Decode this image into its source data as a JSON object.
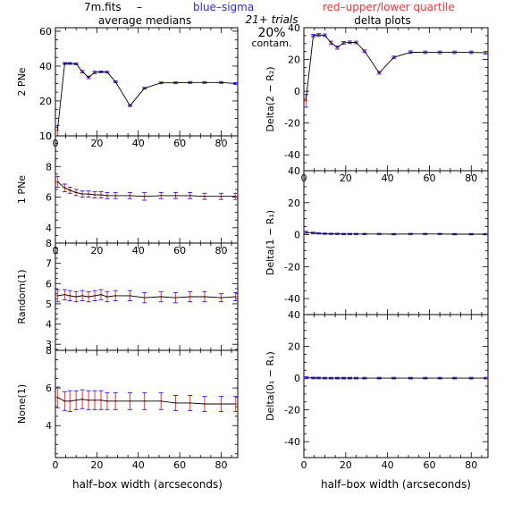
{
  "header": {
    "file": "7m.fits",
    "dash": "–",
    "blue_label": "blue–sigma",
    "red_label": "red–upper/lower quartile",
    "left_title": "average medians",
    "right_title": "delta plots",
    "trials": "21+ trials",
    "contam_pct": "20%",
    "contam_word": "contam."
  },
  "colors": {
    "line": "#000000",
    "blue": "#2a2af0",
    "red": "#ff3030",
    "axis": "#000000"
  },
  "chart_data": [
    {
      "type": "line",
      "panel": "left-1",
      "ylabel": "2 PNe",
      "xlim": [
        0,
        88
      ],
      "ylim": [
        0,
        62
      ],
      "xticks": [
        0,
        20,
        40,
        60,
        80
      ],
      "yticks": [
        0,
        20,
        40,
        60
      ],
      "show_xticklabels": true,
      "series": [
        {
          "x": [
            1,
            4.5,
            7,
            10,
            13,
            16,
            19,
            22,
            25,
            29,
            36,
            43,
            51,
            58,
            65,
            72,
            80,
            87
          ],
          "y": [
            3,
            41.5,
            41.5,
            41.3,
            36.8,
            33.5,
            36.4,
            36.7,
            36.5,
            31,
            17.3,
            27.3,
            30.4,
            30.4,
            30.6,
            30.6,
            30.6,
            30.0
          ],
          "err": [
            3,
            0.5,
            0.5,
            0.5,
            0.7,
            0.7,
            0.7,
            0.5,
            0.5,
            0.5,
            0.5,
            0.5,
            0.5,
            0.5,
            0.5,
            0.5,
            0.5,
            0.5
          ]
        }
      ]
    },
    {
      "type": "line",
      "panel": "left-2",
      "ylabel": "1 PNe",
      "xlim": [
        0,
        88
      ],
      "ylim": [
        3,
        10
      ],
      "xticks": [
        0,
        20,
        40,
        60,
        80
      ],
      "yticks": [
        4,
        6,
        8,
        10
      ],
      "show_xticklabels": true,
      "series": [
        {
          "x": [
            1,
            4.5,
            7,
            10,
            13,
            16,
            19,
            22,
            25,
            29,
            36,
            43,
            51,
            58,
            65,
            72,
            80,
            87
          ],
          "y": [
            7.0,
            6.6,
            6.45,
            6.3,
            6.2,
            6.2,
            6.15,
            6.15,
            6.1,
            6.1,
            6.1,
            6.05,
            6.1,
            6.1,
            6.1,
            6.05,
            6.05,
            6.05
          ],
          "err": [
            0.35,
            0.25,
            0.2,
            0.2,
            0.2,
            0.2,
            0.2,
            0.2,
            0.2,
            0.2,
            0.2,
            0.25,
            0.2,
            0.2,
            0.2,
            0.2,
            0.2,
            0.2
          ]
        }
      ]
    },
    {
      "type": "line",
      "panel": "left-3",
      "ylabel": "Random(1)",
      "xlim": [
        0,
        88
      ],
      "ylim": [
        2.7,
        8
      ],
      "xticks": [
        0,
        20,
        40,
        60,
        80
      ],
      "yticks": [
        3,
        4,
        5,
        6,
        7,
        8
      ],
      "show_xticklabels": false,
      "series": [
        {
          "x": [
            1,
            4.5,
            7,
            10,
            13,
            16,
            19,
            22,
            25,
            29,
            36,
            43,
            51,
            58,
            65,
            72,
            80,
            87
          ],
          "y": [
            5.4,
            5.45,
            5.4,
            5.35,
            5.4,
            5.35,
            5.4,
            5.45,
            5.35,
            5.4,
            5.4,
            5.3,
            5.35,
            5.3,
            5.35,
            5.35,
            5.3,
            5.35
          ],
          "err": [
            0.3,
            0.25,
            0.25,
            0.25,
            0.25,
            0.25,
            0.25,
            0.25,
            0.25,
            0.25,
            0.25,
            0.25,
            0.25,
            0.25,
            0.25,
            0.25,
            0.2,
            0.2
          ]
        }
      ]
    },
    {
      "type": "line",
      "panel": "left-4",
      "ylabel": "None(1)",
      "xlim": [
        0,
        88
      ],
      "ylim": [
        2.3,
        8
      ],
      "xticks": [
        0,
        20,
        40,
        60,
        80
      ],
      "yticks": [
        4,
        6,
        8
      ],
      "show_xticklabels": true,
      "series": [
        {
          "x": [
            1,
            4.5,
            7,
            10,
            13,
            16,
            19,
            22,
            25,
            29,
            36,
            43,
            51,
            58,
            65,
            72,
            80,
            87
          ],
          "y": [
            5.5,
            5.3,
            5.3,
            5.35,
            5.4,
            5.35,
            5.35,
            5.35,
            5.3,
            5.3,
            5.3,
            5.3,
            5.3,
            5.2,
            5.2,
            5.15,
            5.15,
            5.15
          ],
          "err": [
            0.55,
            0.5,
            0.55,
            0.5,
            0.5,
            0.5,
            0.5,
            0.5,
            0.45,
            0.45,
            0.45,
            0.45,
            0.45,
            0.4,
            0.4,
            0.4,
            0.4,
            0.4
          ]
        }
      ]
    },
    {
      "type": "line",
      "panel": "right-1",
      "ylabel": "Delta(2 − R₂)",
      "xlim": [
        0,
        88
      ],
      "ylim": [
        -50,
        40
      ],
      "xticks": [
        0,
        20,
        40,
        60,
        80
      ],
      "yticks": [
        -40,
        -20,
        0,
        20,
        40
      ],
      "show_xticklabels": true,
      "series": [
        {
          "x": [
            1,
            4.5,
            7,
            10,
            13,
            16,
            19,
            22,
            25,
            29,
            36,
            43,
            51,
            58,
            65,
            72,
            80,
            87
          ],
          "y": [
            -6,
            35,
            35.5,
            35.2,
            30.5,
            27.5,
            30.5,
            30.8,
            30.7,
            25.2,
            11.6,
            21.3,
            24.6,
            24.5,
            24.5,
            24.5,
            24.5,
            24.2
          ],
          "err": [
            4,
            0.8,
            0.8,
            0.8,
            1,
            1,
            0.8,
            0.8,
            0.8,
            0.8,
            0.8,
            0.8,
            0.8,
            0.8,
            0.8,
            0.8,
            0.8,
            0.8
          ]
        }
      ]
    },
    {
      "type": "line",
      "panel": "right-2",
      "ylabel": "Delta(1 − R₁)",
      "xlim": [
        0,
        88
      ],
      "ylim": [
        -50,
        40
      ],
      "xticks": [
        0,
        20,
        40,
        60,
        80
      ],
      "yticks": [
        -40,
        -20,
        0,
        20,
        40
      ],
      "show_xticklabels": false,
      "series": [
        {
          "x": [
            1,
            4.5,
            7,
            10,
            13,
            16,
            19,
            22,
            25,
            29,
            36,
            43,
            51,
            58,
            65,
            72,
            80,
            87
          ],
          "y": [
            1.5,
            1.0,
            0.8,
            0.6,
            0.5,
            0.5,
            0.4,
            0.4,
            0.4,
            0.4,
            0.4,
            0.3,
            0.4,
            0.4,
            0.4,
            0.3,
            0.3,
            0.3
          ],
          "err": [
            0.6,
            0.5,
            0.4,
            0.4,
            0.4,
            0.4,
            0.4,
            0.4,
            0.4,
            0.4,
            0.4,
            0.4,
            0.4,
            0.4,
            0.4,
            0.4,
            0.4,
            0.4
          ]
        }
      ]
    },
    {
      "type": "line",
      "panel": "right-3",
      "ylabel": "Delta(0₁ − R₁)",
      "xlim": [
        0,
        88
      ],
      "ylim": [
        -50,
        40
      ],
      "xticks": [
        0,
        20,
        40,
        60,
        80
      ],
      "yticks": [
        -40,
        -20,
        0,
        20,
        40
      ],
      "show_xticklabels": true,
      "series": [
        {
          "x": [
            1,
            4.5,
            7,
            10,
            13,
            16,
            19,
            22,
            25,
            29,
            36,
            43,
            51,
            58,
            65,
            72,
            80,
            87
          ],
          "y": [
            0.3,
            0.1,
            0.1,
            0,
            0,
            0,
            0,
            0,
            0,
            0,
            0,
            0,
            0,
            0,
            0,
            0,
            0,
            0
          ],
          "err": [
            0.6,
            0.5,
            0.5,
            0.5,
            0.5,
            0.5,
            0.5,
            0.5,
            0.5,
            0.5,
            0.5,
            0.5,
            0.5,
            0.5,
            0.5,
            0.5,
            0.5,
            0.5
          ]
        }
      ]
    }
  ],
  "xlabel_left": "half–box width (arcseconds)",
  "xlabel_right": "half–box width (arcseconds)"
}
